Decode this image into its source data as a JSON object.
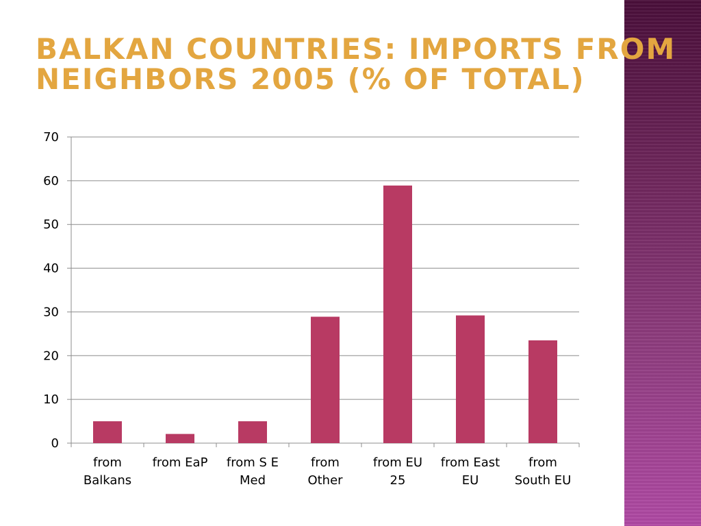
{
  "title": {
    "line1": "Balkan countries: Imports from",
    "line2": "neighbors 2005 (% of total)"
  },
  "colors": {
    "bar": "#b83a63",
    "title": "#e3a640",
    "gridline": "#8c8c8c",
    "side_band": "#8e3c7e"
  },
  "chart_data": {
    "type": "bar",
    "title": "Balkan countries: Imports from neighbors 2005 (% of total)",
    "categories": [
      [
        "from",
        "Balkans"
      ],
      [
        "from EaP"
      ],
      [
        "from S E",
        "Med"
      ],
      [
        "from",
        "Other"
      ],
      [
        "from EU",
        "25"
      ],
      [
        "from East",
        "EU"
      ],
      [
        "from",
        "South EU"
      ]
    ],
    "values": [
      5.0,
      2.1,
      5.0,
      28.9,
      58.9,
      29.2,
      23.5
    ],
    "ylim": [
      0,
      70
    ],
    "yticks": [
      0,
      10,
      20,
      30,
      40,
      50,
      60,
      70
    ],
    "grid": true,
    "legend": "none"
  }
}
